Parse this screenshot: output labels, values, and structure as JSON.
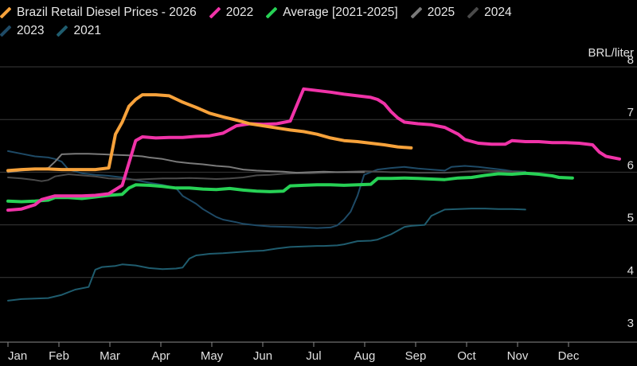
{
  "chart_data": {
    "type": "line",
    "title": "",
    "xlabel": "",
    "ylabel": "BRL/liter",
    "ylim": [
      3,
      8
    ],
    "y_ticks": [
      "3",
      "4",
      "5",
      "6",
      "7",
      "8"
    ],
    "x_ticks": [
      "Jan",
      "Feb",
      "Mar",
      "Apr",
      "May",
      "Jun",
      "Jul",
      "Aug",
      "Sep",
      "Oct",
      "Nov",
      "Dec"
    ],
    "x_unit": "week of year (1-52)",
    "grid": true,
    "legend_position": "top-left",
    "series": [
      {
        "name": "2021",
        "color": "#1f5c6e",
        "width": 2,
        "points": [
          [
            1,
            3.56
          ],
          [
            3,
            3.59
          ],
          [
            5,
            3.6
          ],
          [
            7,
            3.61
          ],
          [
            9,
            3.67
          ],
          [
            11,
            3.77
          ],
          [
            13,
            3.82
          ],
          [
            14,
            4.15
          ],
          [
            15,
            4.2
          ],
          [
            17,
            4.22
          ],
          [
            18,
            4.25
          ],
          [
            20,
            4.23
          ],
          [
            22,
            4.18
          ],
          [
            24,
            4.16
          ],
          [
            26,
            4.17
          ],
          [
            27,
            4.19
          ],
          [
            28,
            4.36
          ],
          [
            29,
            4.42
          ],
          [
            31,
            4.45
          ],
          [
            33,
            4.46
          ],
          [
            35,
            4.48
          ],
          [
            37,
            4.5
          ],
          [
            39,
            4.51
          ],
          [
            41,
            4.55
          ],
          [
            43,
            4.58
          ],
          [
            45,
            4.59
          ],
          [
            47,
            4.6
          ],
          [
            48,
            4.6
          ],
          [
            50,
            4.61
          ],
          [
            51,
            4.63
          ],
          [
            53,
            4.69
          ],
          [
            55,
            4.7
          ],
          [
            56,
            4.72
          ],
          [
            58,
            4.82
          ],
          [
            60,
            4.96
          ],
          [
            61,
            4.98
          ],
          [
            63,
            5.0
          ],
          [
            64,
            5.17
          ],
          [
            66,
            5.29
          ],
          [
            68,
            5.3
          ],
          [
            70,
            5.31
          ],
          [
            72,
            5.31
          ],
          [
            74,
            5.3
          ],
          [
            76,
            5.3
          ],
          [
            78,
            5.29
          ]
        ]
      },
      {
        "name": "2023",
        "color": "#1e4a66",
        "width": 2,
        "points": [
          [
            1,
            6.4
          ],
          [
            3,
            6.35
          ],
          [
            5,
            6.3
          ],
          [
            7,
            6.28
          ],
          [
            8,
            6.25
          ],
          [
            9,
            6.2
          ],
          [
            10,
            6.05
          ],
          [
            12,
            5.98
          ],
          [
            14,
            5.95
          ],
          [
            16,
            5.93
          ],
          [
            18,
            5.9
          ],
          [
            20,
            5.85
          ],
          [
            22,
            5.8
          ],
          [
            24,
            5.76
          ],
          [
            26,
            5.7
          ],
          [
            27,
            5.55
          ],
          [
            29,
            5.4
          ],
          [
            30,
            5.3
          ],
          [
            32,
            5.15
          ],
          [
            33,
            5.1
          ],
          [
            35,
            5.05
          ],
          [
            36,
            5.02
          ],
          [
            38,
            4.99
          ],
          [
            40,
            4.97
          ],
          [
            43,
            4.96
          ],
          [
            45,
            4.95
          ],
          [
            47,
            4.94
          ],
          [
            49,
            4.95
          ],
          [
            50,
            4.99
          ],
          [
            51,
            5.1
          ],
          [
            52,
            5.25
          ],
          [
            53,
            5.55
          ],
          [
            54,
            5.95
          ],
          [
            56,
            6.05
          ],
          [
            58,
            6.08
          ],
          [
            60,
            6.1
          ],
          [
            62,
            6.07
          ],
          [
            64,
            6.05
          ],
          [
            66,
            6.03
          ],
          [
            67,
            6.1
          ],
          [
            69,
            6.12
          ],
          [
            71,
            6.1
          ],
          [
            73,
            6.07
          ],
          [
            75,
            6.04
          ],
          [
            76,
            6.02
          ],
          [
            78,
            6.01
          ]
        ]
      },
      {
        "name": "2024",
        "color": "#4a4a4a",
        "width": 2,
        "points": [
          [
            1,
            5.9
          ],
          [
            3,
            5.88
          ],
          [
            5,
            5.85
          ],
          [
            6,
            5.83
          ],
          [
            7,
            5.85
          ],
          [
            8,
            5.92
          ],
          [
            10,
            5.96
          ],
          [
            12,
            5.94
          ],
          [
            14,
            5.92
          ],
          [
            16,
            5.88
          ],
          [
            18,
            5.87
          ],
          [
            20,
            5.86
          ],
          [
            22,
            5.87
          ],
          [
            24,
            5.88
          ],
          [
            26,
            5.88
          ],
          [
            28,
            5.89
          ],
          [
            30,
            5.88
          ],
          [
            32,
            5.87
          ],
          [
            34,
            5.88
          ],
          [
            36,
            5.9
          ],
          [
            38,
            5.94
          ],
          [
            40,
            5.95
          ],
          [
            42,
            5.97
          ],
          [
            44,
            5.98
          ],
          [
            46,
            5.98
          ],
          [
            48,
            5.99
          ],
          [
            50,
            6.0
          ],
          [
            52,
            6.01
          ],
          [
            54,
            6.02
          ],
          [
            56,
            6.01
          ],
          [
            58,
            6.0
          ],
          [
            60,
            6.0
          ],
          [
            62,
            5.99
          ],
          [
            64,
            5.99
          ],
          [
            66,
            5.99
          ],
          [
            68,
            6.0
          ],
          [
            70,
            6.02
          ],
          [
            72,
            6.03
          ],
          [
            74,
            6.02
          ],
          [
            76,
            6.01
          ],
          [
            78,
            6.0
          ]
        ]
      },
      {
        "name": "2025",
        "color": "#7a7a7a",
        "width": 2,
        "points": [
          [
            1,
            6.0
          ],
          [
            3,
            6.03
          ],
          [
            5,
            6.05
          ],
          [
            7,
            6.08
          ],
          [
            8,
            6.2
          ],
          [
            9,
            6.34
          ],
          [
            11,
            6.35
          ],
          [
            13,
            6.35
          ],
          [
            15,
            6.34
          ],
          [
            17,
            6.33
          ],
          [
            19,
            6.32
          ],
          [
            21,
            6.3
          ],
          [
            22,
            6.28
          ],
          [
            24,
            6.25
          ],
          [
            26,
            6.2
          ],
          [
            28,
            6.17
          ],
          [
            30,
            6.15
          ],
          [
            32,
            6.12
          ],
          [
            34,
            6.1
          ],
          [
            36,
            6.05
          ],
          [
            38,
            6.03
          ],
          [
            40,
            6.02
          ],
          [
            42,
            6.01
          ],
          [
            44,
            5.99
          ],
          [
            46,
            6.0
          ],
          [
            48,
            6.01
          ],
          [
            50,
            6.0
          ],
          [
            52,
            6.0
          ],
          [
            54,
            6.0
          ]
        ]
      },
      {
        "name": "Average [2021-2025]",
        "color": "#27d155",
        "width": 4,
        "points": [
          [
            1,
            5.45
          ],
          [
            3,
            5.44
          ],
          [
            5,
            5.45
          ],
          [
            7,
            5.47
          ],
          [
            8,
            5.52
          ],
          [
            10,
            5.52
          ],
          [
            12,
            5.5
          ],
          [
            14,
            5.53
          ],
          [
            16,
            5.56
          ],
          [
            18,
            5.58
          ],
          [
            19,
            5.7
          ],
          [
            20,
            5.76
          ],
          [
            22,
            5.75
          ],
          [
            24,
            5.73
          ],
          [
            26,
            5.7
          ],
          [
            28,
            5.7
          ],
          [
            30,
            5.68
          ],
          [
            32,
            5.67
          ],
          [
            34,
            5.69
          ],
          [
            36,
            5.66
          ],
          [
            38,
            5.64
          ],
          [
            40,
            5.63
          ],
          [
            42,
            5.64
          ],
          [
            43,
            5.74
          ],
          [
            45,
            5.75
          ],
          [
            47,
            5.76
          ],
          [
            49,
            5.76
          ],
          [
            51,
            5.75
          ],
          [
            53,
            5.76
          ],
          [
            55,
            5.77
          ],
          [
            56,
            5.88
          ],
          [
            58,
            5.88
          ],
          [
            60,
            5.89
          ],
          [
            62,
            5.88
          ],
          [
            64,
            5.87
          ],
          [
            66,
            5.86
          ],
          [
            68,
            5.89
          ],
          [
            70,
            5.9
          ],
          [
            72,
            5.94
          ],
          [
            74,
            5.97
          ],
          [
            76,
            5.96
          ],
          [
            78,
            5.98
          ],
          [
            80,
            5.96
          ],
          [
            82,
            5.93
          ],
          [
            83,
            5.9
          ],
          [
            85,
            5.89
          ]
        ]
      },
      {
        "name": "2022",
        "color": "#f033a8",
        "width": 4,
        "points": [
          [
            1,
            5.28
          ],
          [
            3,
            5.3
          ],
          [
            5,
            5.38
          ],
          [
            6,
            5.48
          ],
          [
            8,
            5.55
          ],
          [
            10,
            5.55
          ],
          [
            12,
            5.55
          ],
          [
            14,
            5.56
          ],
          [
            16,
            5.59
          ],
          [
            18,
            5.75
          ],
          [
            20,
            6.6
          ],
          [
            21,
            6.67
          ],
          [
            23,
            6.65
          ],
          [
            25,
            6.66
          ],
          [
            27,
            6.66
          ],
          [
            29,
            6.68
          ],
          [
            31,
            6.69
          ],
          [
            33,
            6.74
          ],
          [
            35,
            6.88
          ],
          [
            37,
            6.92
          ],
          [
            39,
            6.91
          ],
          [
            41,
            6.92
          ],
          [
            43,
            6.97
          ],
          [
            45,
            7.58
          ],
          [
            47,
            7.55
          ],
          [
            49,
            7.52
          ],
          [
            51,
            7.48
          ],
          [
            53,
            7.45
          ],
          [
            55,
            7.42
          ],
          [
            56,
            7.38
          ],
          [
            57,
            7.3
          ],
          [
            58,
            7.15
          ],
          [
            59,
            7.03
          ],
          [
            60,
            6.95
          ],
          [
            62,
            6.92
          ],
          [
            64,
            6.9
          ],
          [
            66,
            6.85
          ],
          [
            68,
            6.72
          ],
          [
            69,
            6.62
          ],
          [
            71,
            6.55
          ],
          [
            73,
            6.53
          ],
          [
            75,
            6.53
          ],
          [
            76,
            6.6
          ],
          [
            78,
            6.58
          ],
          [
            80,
            6.58
          ],
          [
            82,
            6.56
          ],
          [
            84,
            6.56
          ],
          [
            86,
            6.55
          ],
          [
            88,
            6.52
          ],
          [
            89,
            6.38
          ],
          [
            90,
            6.3
          ],
          [
            92,
            6.25
          ]
        ]
      },
      {
        "name": "Brazil Retail Diesel Prices - 2026",
        "color": "#f7a23b",
        "width": 4,
        "points": [
          [
            1,
            6.03
          ],
          [
            3,
            6.05
          ],
          [
            5,
            6.06
          ],
          [
            7,
            6.06
          ],
          [
            9,
            6.05
          ],
          [
            11,
            6.05
          ],
          [
            13,
            6.05
          ],
          [
            14,
            6.05
          ],
          [
            16,
            6.08
          ],
          [
            17,
            6.72
          ],
          [
            18,
            6.95
          ],
          [
            19,
            7.25
          ],
          [
            20,
            7.38
          ],
          [
            21,
            7.47
          ],
          [
            23,
            7.47
          ],
          [
            25,
            7.45
          ],
          [
            27,
            7.33
          ],
          [
            29,
            7.23
          ],
          [
            31,
            7.12
          ],
          [
            33,
            7.05
          ],
          [
            35,
            6.99
          ],
          [
            37,
            6.92
          ],
          [
            39,
            6.88
          ],
          [
            41,
            6.84
          ],
          [
            43,
            6.8
          ],
          [
            45,
            6.77
          ],
          [
            47,
            6.72
          ],
          [
            49,
            6.65
          ],
          [
            51,
            6.6
          ],
          [
            53,
            6.58
          ],
          [
            55,
            6.55
          ],
          [
            57,
            6.52
          ],
          [
            59,
            6.48
          ],
          [
            61,
            6.46
          ]
        ]
      }
    ]
  },
  "legend": [
    [
      "Brazil Retail Diesel Prices - 2026",
      "2022",
      "Average [2021-2025]",
      "2025",
      "2024"
    ],
    [
      "2023",
      "2021"
    ]
  ],
  "colors": {
    "Brazil Retail Diesel Prices - 2026": "#f7a23b",
    "2022": "#f033a8",
    "Average [2021-2025]": "#27d155",
    "2025": "#7a7a7a",
    "2024": "#4a4a4a",
    "2023": "#1e4a66",
    "2021": "#1f5c6e"
  }
}
